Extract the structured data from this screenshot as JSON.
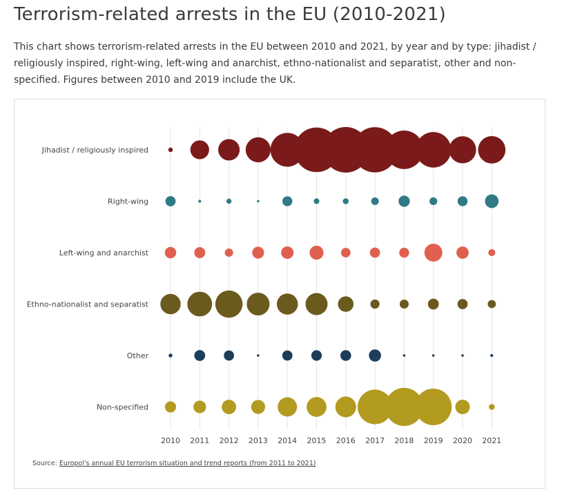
{
  "title": "Terrorism-related arrests in the EU (2010-2021)",
  "description": "This chart shows terrorism-related arrests in the EU between 2010 and 2021, by year and by type: jihadist / religiously inspired, right-wing, left-wing and anarchist, ethno-nationalist and separatist, other and non-specified. Figures between 2010 and 2019 include the UK.",
  "source": {
    "prefix": "Source: ",
    "link_text": "Europol's annual EU terrorism situation and trend reports (from 2011 to 2021)"
  },
  "chart_data": {
    "type": "bubble",
    "title": "Terrorism-related arrests in the EU (2010-2021)",
    "x": [
      "2010",
      "2011",
      "2012",
      "2013",
      "2014",
      "2015",
      "2016",
      "2017",
      "2018",
      "2019",
      "2020",
      "2021"
    ],
    "grid": "vertical",
    "series": [
      {
        "name": "Jihadist / religiously inspired",
        "color": "#7a1a1a",
        "values": [
          7,
          122,
          159,
          216,
          395,
          687,
          718,
          705,
          511,
          436,
          254,
          260
        ]
      },
      {
        "name": "Right-wing",
        "color": "#2f7a85",
        "values": [
          36,
          3,
          9,
          2,
          34,
          11,
          12,
          20,
          44,
          21,
          34,
          64
        ]
      },
      {
        "name": "Left-wing and anarchist",
        "color": "#e06050",
        "values": [
          45,
          42,
          24,
          49,
          54,
          67,
          31,
          36,
          34,
          111,
          52,
          17
        ]
      },
      {
        "name": "Ethno-nationalist and separatist",
        "color": "#6b5a1e",
        "values": [
          143,
          212,
          257,
          180,
          154,
          168,
          84,
          29,
          28,
          41,
          36,
          23
        ]
      },
      {
        "name": "Other",
        "color": "#1d3e5a",
        "values": [
          5,
          41,
          36,
          2,
          36,
          38,
          40,
          51,
          2,
          2,
          2,
          3
        ]
      },
      {
        "name": "Non-specified",
        "color": "#b39a20",
        "values": [
          43,
          55,
          72,
          67,
          129,
          136,
          150,
          415,
          501,
          463,
          73,
          12
        ]
      }
    ]
  }
}
